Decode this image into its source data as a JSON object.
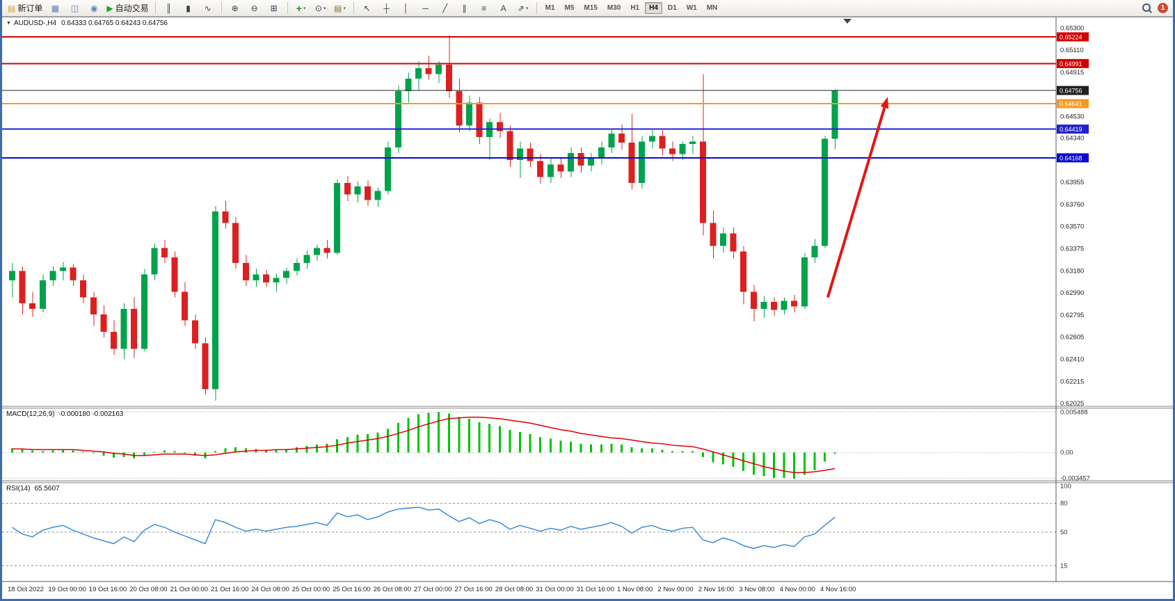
{
  "toolbar": {
    "groups": [
      {
        "name": "trading",
        "items": [
          {
            "name": "new-order-button",
            "icon": "new-order-icon",
            "glyph": "▤",
            "glyph_color": "#c9a23a",
            "label": "新订单"
          },
          {
            "name": "chart-window-button",
            "icon": "chart-window-icon",
            "glyph": "▦",
            "glyph_color": "#5b82b8"
          },
          {
            "name": "profiles-button",
            "icon": "profiles-icon",
            "glyph": "◫",
            "glyph_color": "#5b82b8"
          },
          {
            "name": "market-watch-button",
            "icon": "market-watch-icon",
            "glyph": "◉",
            "glyph_color": "#5b82b8"
          },
          {
            "name": "autotrading-button",
            "icon": "play-icon",
            "glyph": "▶",
            "glyph_color": "#1ba51b",
            "label": "自动交易"
          }
        ]
      },
      {
        "name": "chart-types",
        "items": [
          {
            "name": "bar-chart-button",
            "icon": "bar-chart-icon",
            "glyph": "║",
            "glyph_color": "#33414e"
          },
          {
            "name": "candlestick-button",
            "icon": "candlestick-icon",
            "glyph": "▮",
            "glyph_color": "#33414e"
          },
          {
            "name": "line-chart-button",
            "icon": "line-chart-icon",
            "glyph": "∿",
            "glyph_color": "#33414e"
          }
        ]
      },
      {
        "name": "zoom-windows",
        "items": [
          {
            "name": "zoom-in-button",
            "icon": "zoom-in-icon",
            "glyph": "⊕",
            "glyph_color": "#33414e"
          },
          {
            "name": "zoom-out-button",
            "icon": "zoom-out-icon",
            "glyph": "⊖",
            "glyph_color": "#33414e"
          },
          {
            "name": "tile-windows-button",
            "icon": "tile-windows-icon",
            "glyph": "⊞",
            "glyph_color": "#33414e"
          }
        ]
      },
      {
        "name": "chart-objects",
        "items": [
          {
            "name": "indicators-button",
            "icon": "add-indicator-icon",
            "glyph": "+",
            "glyph_color": "#169416",
            "dropdown": true
          },
          {
            "name": "periods-button",
            "icon": "clock-icon",
            "glyph": "⊙",
            "glyph_color": "#33414e",
            "dropdown": true
          },
          {
            "name": "templates-button",
            "icon": "template-icon",
            "glyph": "▤",
            "glyph_color": "#8a6f2f",
            "dropdown": true
          }
        ]
      },
      {
        "name": "drawing-tools",
        "items": [
          {
            "name": "cursor-button",
            "icon": "cursor-icon",
            "glyph": "↖",
            "glyph_color": "#33414e"
          },
          {
            "name": "crosshair-button",
            "icon": "crosshair-icon",
            "glyph": "┼",
            "glyph_color": "#33414e"
          },
          {
            "name": "vertical-line-button",
            "icon": "vertical-line-icon",
            "glyph": "│",
            "glyph_color": "#33414e"
          },
          {
            "name": "horizontal-line-button",
            "icon": "horizontal-line-icon",
            "glyph": "─",
            "glyph_color": "#33414e"
          },
          {
            "name": "trendline-button",
            "icon": "trendline-icon",
            "glyph": "╱",
            "glyph_color": "#33414e"
          },
          {
            "name": "channel-button",
            "icon": "channel-icon",
            "glyph": "∥",
            "glyph_color": "#33414e"
          },
          {
            "name": "fibonacci-button",
            "icon": "fibonacci-icon",
            "glyph": "≡",
            "glyph_color": "#33414e"
          },
          {
            "name": "text-button",
            "icon": "text-icon",
            "glyph": "A",
            "glyph_color": "#33414e"
          },
          {
            "name": "arrows-button",
            "icon": "arrow-object-icon",
            "glyph": "⇗",
            "glyph_color": "#33414e",
            "dropdown": true
          }
        ]
      }
    ],
    "timeframes": [
      {
        "name": "timeframe-m1",
        "label": "M1",
        "active": false
      },
      {
        "name": "timeframe-m5",
        "label": "M5",
        "active": false
      },
      {
        "name": "timeframe-m15",
        "label": "M15",
        "active": false
      },
      {
        "name": "timeframe-m30",
        "label": "M30",
        "active": false
      },
      {
        "name": "timeframe-h1",
        "label": "H1",
        "active": false
      },
      {
        "name": "timeframe-h4",
        "label": "H4",
        "active": true
      },
      {
        "name": "timeframe-d1",
        "label": "D1",
        "active": false
      },
      {
        "name": "timeframe-w1",
        "label": "W1",
        "active": false
      },
      {
        "name": "timeframe-mn",
        "label": "MN",
        "active": false
      }
    ],
    "right": {
      "badge": "1",
      "badge_color": "#ce4a36"
    }
  },
  "chart": {
    "collapse_glyph": "▼",
    "symbol_period": "AUDUSD-,H4",
    "ohlc": "0.64333 0.64765 0.64243 0.64756"
  },
  "indicators": {
    "macd": {
      "label": "MACD(12,26,9)",
      "values": "-0.000180 -0.002163"
    },
    "rsi": {
      "label": "RSI(14)",
      "value": "65.5607"
    }
  },
  "chart_data": {
    "type": "candlestick",
    "symbol": "AUDUSD",
    "timeframe": "H4",
    "title": "AUDUSD-,H4",
    "current_ohlc": {
      "open": 0.64333,
      "high": 0.64765,
      "low": 0.64243,
      "close": 0.64756
    },
    "price_range": [
      0.62,
      0.654
    ],
    "bull_color": "#00a24c",
    "bear_color": "#dc2020",
    "candles": [
      [
        0.631,
        0.6325,
        0.6295,
        0.6318
      ],
      [
        0.6318,
        0.6322,
        0.628,
        0.629
      ],
      [
        0.629,
        0.63,
        0.6278,
        0.6285
      ],
      [
        0.6285,
        0.6315,
        0.6282,
        0.631
      ],
      [
        0.631,
        0.6322,
        0.6305,
        0.6318
      ],
      [
        0.6318,
        0.6326,
        0.631,
        0.6321
      ],
      [
        0.6321,
        0.6324,
        0.6305,
        0.631
      ],
      [
        0.631,
        0.6315,
        0.629,
        0.6295
      ],
      [
        0.6295,
        0.63,
        0.627,
        0.628
      ],
      [
        0.628,
        0.6288,
        0.626,
        0.6265
      ],
      [
        0.6265,
        0.6275,
        0.6245,
        0.625
      ],
      [
        0.625,
        0.629,
        0.6241,
        0.6285
      ],
      [
        0.6285,
        0.6295,
        0.6242,
        0.625
      ],
      [
        0.625,
        0.632,
        0.6248,
        0.6315
      ],
      [
        0.6315,
        0.6342,
        0.631,
        0.6338
      ],
      [
        0.6338,
        0.6345,
        0.6325,
        0.633
      ],
      [
        0.633,
        0.6335,
        0.6295,
        0.63
      ],
      [
        0.63,
        0.6308,
        0.627,
        0.6275
      ],
      [
        0.6275,
        0.628,
        0.625,
        0.6255
      ],
      [
        0.6255,
        0.626,
        0.621,
        0.6215
      ],
      [
        0.6215,
        0.6375,
        0.6205,
        0.637
      ],
      [
        0.637,
        0.6379,
        0.6355,
        0.636
      ],
      [
        0.636,
        0.6365,
        0.632,
        0.6325
      ],
      [
        0.6325,
        0.6332,
        0.6305,
        0.631
      ],
      [
        0.631,
        0.632,
        0.6304,
        0.6315
      ],
      [
        0.6315,
        0.6319,
        0.6304,
        0.6308
      ],
      [
        0.6308,
        0.6316,
        0.63,
        0.6312
      ],
      [
        0.6312,
        0.6321,
        0.6307,
        0.6318
      ],
      [
        0.6318,
        0.6329,
        0.6314,
        0.6325
      ],
      [
        0.6325,
        0.6336,
        0.632,
        0.6332
      ],
      [
        0.6332,
        0.6341,
        0.6327,
        0.6338
      ],
      [
        0.6338,
        0.6345,
        0.6329,
        0.6334
      ],
      [
        0.6334,
        0.6398,
        0.6332,
        0.6395
      ],
      [
        0.6395,
        0.6401,
        0.6379,
        0.6385
      ],
      [
        0.6385,
        0.6396,
        0.6378,
        0.6392
      ],
      [
        0.6392,
        0.6397,
        0.6375,
        0.638
      ],
      [
        0.638,
        0.6391,
        0.6374,
        0.6388
      ],
      [
        0.6388,
        0.6431,
        0.6385,
        0.6426
      ],
      [
        0.6426,
        0.648,
        0.6421,
        0.6475
      ],
      [
        0.6475,
        0.6491,
        0.6465,
        0.6486
      ],
      [
        0.6486,
        0.6501,
        0.6476,
        0.6495
      ],
      [
        0.6495,
        0.6506,
        0.6485,
        0.649
      ],
      [
        0.649,
        0.6501,
        0.6482,
        0.6498
      ],
      [
        0.6498,
        0.6524,
        0.6469,
        0.6475
      ],
      [
        0.6475,
        0.6486,
        0.6439,
        0.6445
      ],
      [
        0.6445,
        0.6471,
        0.644,
        0.6465
      ],
      [
        0.6465,
        0.647,
        0.6429,
        0.6435
      ],
      [
        0.6435,
        0.6451,
        0.6415,
        0.6448
      ],
      [
        0.6448,
        0.6456,
        0.6434,
        0.644
      ],
      [
        0.644,
        0.6445,
        0.6409,
        0.6415
      ],
      [
        0.6415,
        0.6431,
        0.6399,
        0.6425
      ],
      [
        0.6425,
        0.643,
        0.6409,
        0.6414
      ],
      [
        0.6414,
        0.642,
        0.6394,
        0.64
      ],
      [
        0.64,
        0.6416,
        0.6395,
        0.6411
      ],
      [
        0.6411,
        0.6416,
        0.6399,
        0.6405
      ],
      [
        0.6405,
        0.6426,
        0.64,
        0.6421
      ],
      [
        0.6421,
        0.6426,
        0.6404,
        0.641
      ],
      [
        0.641,
        0.6421,
        0.6405,
        0.6416
      ],
      [
        0.6416,
        0.6431,
        0.6411,
        0.6426
      ],
      [
        0.6426,
        0.6441,
        0.6421,
        0.6438
      ],
      [
        0.6438,
        0.6446,
        0.6424,
        0.643
      ],
      [
        0.643,
        0.6455,
        0.6389,
        0.6395
      ],
      [
        0.6395,
        0.6436,
        0.639,
        0.6431
      ],
      [
        0.6431,
        0.6441,
        0.6425,
        0.6436
      ],
      [
        0.6436,
        0.6441,
        0.6419,
        0.6425
      ],
      [
        0.6425,
        0.6431,
        0.6414,
        0.642
      ],
      [
        0.642,
        0.6431,
        0.6415,
        0.6429
      ],
      [
        0.6429,
        0.6436,
        0.642,
        0.6431
      ],
      [
        0.6431,
        0.649,
        0.6349,
        0.636
      ],
      [
        0.636,
        0.6371,
        0.6329,
        0.634
      ],
      [
        0.634,
        0.6356,
        0.6334,
        0.6351
      ],
      [
        0.6351,
        0.6356,
        0.6329,
        0.6335
      ],
      [
        0.6335,
        0.634,
        0.6289,
        0.63
      ],
      [
        0.63,
        0.6306,
        0.6274,
        0.6285
      ],
      [
        0.6285,
        0.6296,
        0.6277,
        0.6291
      ],
      [
        0.6291,
        0.6295,
        0.6279,
        0.6284
      ],
      [
        0.6284,
        0.6295,
        0.628,
        0.6292
      ],
      [
        0.6292,
        0.6297,
        0.6282,
        0.6287
      ],
      [
        0.6287,
        0.6334,
        0.6285,
        0.633
      ],
      [
        0.633,
        0.6346,
        0.6325,
        0.634
      ],
      [
        0.634,
        0.6436,
        0.6338,
        0.64333
      ],
      [
        0.64333,
        0.64765,
        0.64243,
        0.64756
      ]
    ],
    "time_labels": [
      "18 Oct 2022",
      "19 Oct 00:00",
      "19 Oct 16:00",
      "20 Oct 08:00",
      "21 Oct 00:00",
      "21 Oct 16:00",
      "24 Oct 08:00",
      "25 Oct 00:00",
      "25 Oct 16:00",
      "26 Oct 08:00",
      "27 Oct 00:00",
      "27 Oct 16:00",
      "28 Oct 08:00",
      "31 Oct 00:00",
      "31 Oct 16:00",
      "1 Nov 08:00",
      "2 Nov 00:00",
      "2 Nov 16:00",
      "3 Nov 08:00",
      "4 Nov 00:00",
      "4 Nov 16:00"
    ],
    "time_label_step": 4,
    "price_axis_labels": [
      "0.65300",
      "0.65110",
      "0.64915",
      "0.64530",
      "0.64340",
      "0.63955",
      "0.63760",
      "0.63570",
      "0.63375",
      "0.63180",
      "0.62990",
      "0.62795",
      "0.62605",
      "0.62410",
      "0.62215",
      "0.62025"
    ],
    "hlines": [
      {
        "price": 0.65224,
        "label": "0.65224",
        "color": "#d40000",
        "width": 2,
        "name": "resistance-line-65224"
      },
      {
        "price": 0.64991,
        "label": "0.64991",
        "color": "#d40000",
        "width": 2,
        "name": "resistance-line-64991"
      },
      {
        "price": 0.64756,
        "label": "0.64756",
        "color": "#202020",
        "width": 1,
        "name": "current-price-line"
      },
      {
        "price": 0.64641,
        "label": "0.64641",
        "color": "#f59a23",
        "width": 2,
        "name": "pivot-line-64641"
      },
      {
        "price": 0.64419,
        "label": "0.64419",
        "color": "#2222cc",
        "width": 2,
        "name": "support-line-64419"
      },
      {
        "price": 0.64168,
        "label": "0.64168",
        "color": "#0a0ad0",
        "width": 2,
        "name": "support-line-64168"
      }
    ],
    "arrow": {
      "from_index": 80.3,
      "from_price": 0.6295,
      "to_index": 86.2,
      "to_price": 0.647,
      "color": "#e41616"
    },
    "macd": {
      "label": "MACD(12,26,9)",
      "hist_color": "#00c300",
      "signal_color": "#e00000",
      "range": [
        -0.0038,
        0.006
      ],
      "axis_labels": [
        {
          "text": "0.005488",
          "value": 0.005488
        },
        {
          "text": "0.00",
          "value": 0
        },
        {
          "text": "-0.003457",
          "value": -0.003457
        }
      ],
      "histogram": [
        0.0006,
        0.0005,
        0.0003,
        0.0002,
        0.0003,
        0.0004,
        0.0003,
        0.0001,
        -0.0001,
        -0.0004,
        -0.0007,
        -0.0006,
        -0.0008,
        -0.0004,
        0.0001,
        0.0003,
        0.0002,
        -0.0001,
        -0.0004,
        -0.0008,
        0.0002,
        0.0006,
        0.0007,
        0.0006,
        0.0005,
        0.0004,
        0.0004,
        0.0005,
        0.0007,
        0.0009,
        0.0011,
        0.0012,
        0.0018,
        0.0021,
        0.0024,
        0.0025,
        0.0027,
        0.0032,
        0.004,
        0.0047,
        0.0052,
        0.0054,
        0.0055,
        0.0053,
        0.0048,
        0.0046,
        0.0041,
        0.0039,
        0.0036,
        0.0031,
        0.0028,
        0.0025,
        0.0021,
        0.0019,
        0.0016,
        0.0015,
        0.0012,
        0.0011,
        0.0011,
        0.0012,
        0.0011,
        0.0007,
        0.0006,
        0.0006,
        0.0004,
        0.0002,
        0.0002,
        0.0002,
        -0.0006,
        -0.0013,
        -0.0016,
        -0.0019,
        -0.0025,
        -0.003,
        -0.0032,
        -0.0034,
        -0.0034,
        -0.0035,
        -0.003,
        -0.0024,
        -0.0012,
        -0.00018
      ],
      "signal": [
        0.0005,
        0.0005,
        0.0004,
        0.0004,
        0.0004,
        0.0004,
        0.0004,
        0.0003,
        0.0002,
        0.0001,
        -0.0001,
        -0.0002,
        -0.0004,
        -0.0004,
        -0.0003,
        -0.0002,
        -0.0002,
        -0.0002,
        -0.0003,
        -0.0004,
        -0.0003,
        -0.0001,
        0.0001,
        0.0002,
        0.0003,
        0.0003,
        0.0004,
        0.0004,
        0.0005,
        0.0006,
        0.0007,
        0.0008,
        0.001,
        0.0013,
        0.0015,
        0.0017,
        0.0019,
        0.0022,
        0.0026,
        0.003,
        0.0035,
        0.0039,
        0.0043,
        0.0046,
        0.0047,
        0.0048,
        0.0048,
        0.0047,
        0.0046,
        0.0044,
        0.0042,
        0.004,
        0.0037,
        0.0034,
        0.0031,
        0.0029,
        0.0026,
        0.0024,
        0.0022,
        0.002,
        0.0019,
        0.0017,
        0.0015,
        0.0013,
        0.0012,
        0.001,
        0.0009,
        0.0008,
        0.0005,
        0.0001,
        -0.0003,
        -0.0007,
        -0.0011,
        -0.0015,
        -0.0019,
        -0.0022,
        -0.0025,
        -0.0027,
        -0.0027,
        -0.0026,
        -0.0024,
        -0.00216
      ]
    },
    "rsi": {
      "label": "RSI(14)",
      "current": 65.5607,
      "color": "#2f86d5",
      "levels": [
        80,
        50,
        15
      ],
      "axis_labels": [
        {
          "text": "100",
          "value": 100
        },
        {
          "text": "80",
          "value": 80
        },
        {
          "text": "50",
          "value": 50
        },
        {
          "text": "15",
          "value": 15
        }
      ],
      "values": [
        55,
        48,
        45,
        52,
        55,
        57,
        52,
        48,
        44,
        41,
        38,
        45,
        40,
        52,
        58,
        55,
        50,
        46,
        42,
        38,
        63,
        60,
        55,
        51,
        53,
        51,
        53,
        55,
        56,
        58,
        60,
        57,
        70,
        66,
        68,
        63,
        66,
        71,
        74,
        75,
        76,
        73,
        74,
        67,
        61,
        65,
        59,
        63,
        60,
        53,
        57,
        54,
        51,
        54,
        52,
        56,
        53,
        55,
        57,
        60,
        56,
        49,
        55,
        57,
        53,
        51,
        54,
        55,
        42,
        39,
        44,
        41,
        36,
        33,
        36,
        34,
        37,
        35,
        45,
        48,
        57,
        65.5607
      ]
    }
  }
}
